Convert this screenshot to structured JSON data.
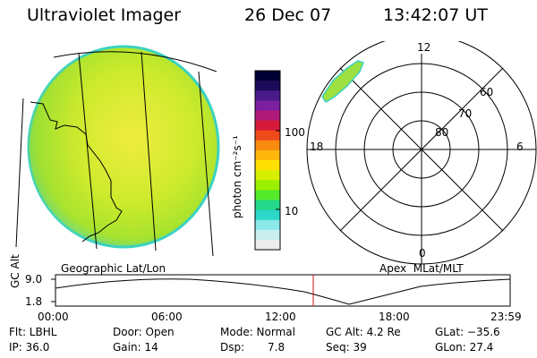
{
  "header": {
    "instrument": "Ultraviolet Imager",
    "date": "26 Dec 07",
    "time": "13:42:07 UT"
  },
  "colorbar": {
    "label": "photon cm⁻²s⁻¹",
    "ticks": [
      "100",
      "10"
    ],
    "colors": [
      "#000033",
      "#1b0b5a",
      "#4a1a8a",
      "#7a1fa0",
      "#b01a7a",
      "#d61a3a",
      "#ef4a1a",
      "#f88a10",
      "#ffb70a",
      "#ffe000",
      "#d8f000",
      "#9bf000",
      "#55ea2a",
      "#25d98a",
      "#2ad7c8",
      "#8ae8e8",
      "#c8eef0",
      "#ececec"
    ]
  },
  "left_panel": {
    "caption": "Geographic Lat/Lon"
  },
  "polar_plot": {
    "caption": "Apex  MLat/MLT",
    "mlt_labels": {
      "top": "12",
      "left": "18",
      "right": "6",
      "bottom": "0"
    },
    "lat_labels": [
      "60",
      "70",
      "80"
    ]
  },
  "altitude_plot": {
    "y_label": "GC Alt",
    "y_ticks": [
      "9.0",
      "1.8"
    ],
    "x_ticks": [
      "00:00",
      "06:00",
      "12:00",
      "18:00",
      "23:59"
    ],
    "marker_color": "#d01010"
  },
  "footer": {
    "row1": {
      "filter": "Flt: LBHL",
      "door": "Door: Open",
      "mode": "Mode: Normal",
      "gc_alt": "GC Alt: 4.2 Re",
      "glat": "GLat: −35.6"
    },
    "row2": {
      "ip": "IP: 36.0",
      "gain": "Gain: 14",
      "dsp_label": "Dsp:",
      "dsp_value": "7.8",
      "seq": "Seq: 39",
      "glon": "GLon: 27.4"
    }
  }
}
